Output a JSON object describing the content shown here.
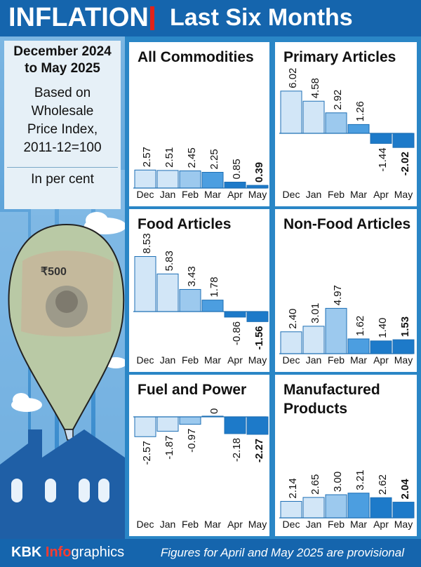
{
  "header": {
    "title": "INFLATION",
    "subtitle": "Last Six Months"
  },
  "sidebar": {
    "period": [
      "December 2024",
      "to May 2025"
    ],
    "basis": [
      "Based on",
      "Wholesale",
      "Price Index,",
      "2011-12=100"
    ],
    "unit": "In per cent"
  },
  "footer": {
    "brand_prefix": "KBK ",
    "brand_highlight": "Info",
    "brand_suffix": "graphics",
    "note": "Figures for April and May 2025 are provisional"
  },
  "colors": {
    "bar_light": "#d2e6f7",
    "bar_mid": "#9cc9ee",
    "bar_strong": "#4c9ee0",
    "bar_deep": "#1d7ac9",
    "header_blue": "#1565ad",
    "accent_red": "#e2231a"
  },
  "chart_data": [
    {
      "type": "bar",
      "title": "All Commodities",
      "categories": [
        "Dec",
        "Jan",
        "Feb",
        "Mar",
        "Apr",
        "May"
      ],
      "values": [
        2.57,
        2.51,
        2.45,
        2.25,
        0.85,
        0.39
      ],
      "value_labels": [
        "2.57",
        "2.51",
        "2.45",
        "2.25",
        "0.85",
        "0.39"
      ]
    },
    {
      "type": "bar",
      "title": "Primary Articles",
      "categories": [
        "Dec",
        "Jan",
        "Feb",
        "Mar",
        "Apr",
        "May"
      ],
      "values": [
        6.02,
        4.58,
        2.92,
        1.26,
        -1.44,
        -2.02
      ],
      "value_labels": [
        "6.02",
        "4.58",
        "2.92",
        "1.26",
        "-1.44",
        "-2.02"
      ]
    },
    {
      "type": "bar",
      "title": "Food Articles",
      "categories": [
        "Dec",
        "Jan",
        "Feb",
        "Mar",
        "Apr",
        "May"
      ],
      "values": [
        8.53,
        5.83,
        3.43,
        1.78,
        -0.86,
        -1.56
      ],
      "value_labels": [
        "8.53",
        "5.83",
        "3.43",
        "1.78",
        "-0.86",
        "-1.56"
      ]
    },
    {
      "type": "bar",
      "title": "Non-Food Articles",
      "categories": [
        "Dec",
        "Jan",
        "Feb",
        "Mar",
        "Apr",
        "May"
      ],
      "values": [
        2.4,
        3.01,
        4.97,
        1.62,
        1.4,
        1.53
      ],
      "value_labels": [
        "2.40",
        "3.01",
        "4.97",
        "1.62",
        "1.40",
        "1.53"
      ]
    },
    {
      "type": "bar",
      "title": "Fuel and Power",
      "categories": [
        "Dec",
        "Jan",
        "Feb",
        "Mar",
        "Apr",
        "May"
      ],
      "values": [
        -2.57,
        -1.87,
        -0.97,
        0,
        -2.18,
        -2.27
      ],
      "value_labels": [
        "-2.57",
        "-1.87",
        "-0.97",
        "0",
        "-2.18",
        "-2.27"
      ]
    },
    {
      "type": "bar",
      "title": "Manufactured Products",
      "title_lines": [
        "Manufactured",
        "Products"
      ],
      "categories": [
        "Dec",
        "Jan",
        "Feb",
        "Mar",
        "Apr",
        "May"
      ],
      "values": [
        2.14,
        2.65,
        3.0,
        3.21,
        2.62,
        2.04
      ],
      "value_labels": [
        "2.14",
        "2.65",
        "3.00",
        "3.21",
        "2.62",
        "2.04"
      ]
    }
  ]
}
